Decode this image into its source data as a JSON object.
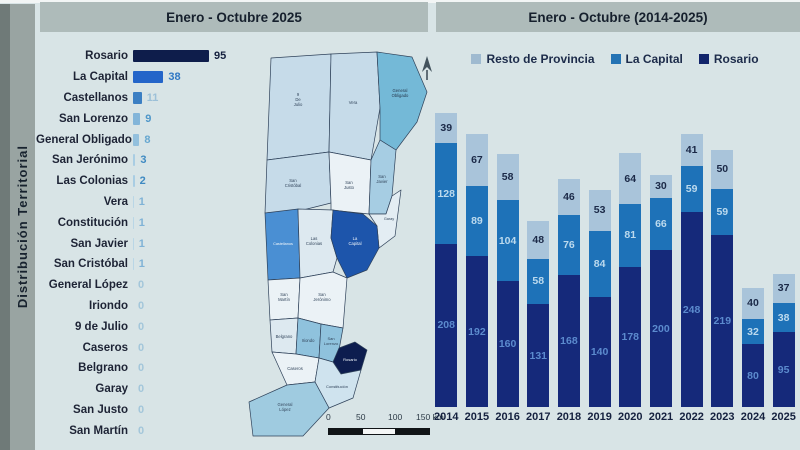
{
  "sidebar": {
    "title": "Distribución Territorial"
  },
  "left_panel": {
    "title": "Enero - Octubre 2025"
  },
  "right_panel": {
    "title": "Enero - Octubre (2014-2025)"
  },
  "legend": [
    {
      "label": "Resto de Provincia",
      "color": "#9fbad0"
    },
    {
      "label": "La Capital",
      "color": "#2473b4"
    },
    {
      "label": "Rosario",
      "color": "#12256b"
    }
  ],
  "chart_data": [
    {
      "type": "bar",
      "orientation": "horizontal",
      "title": "Enero - Octubre 2025",
      "categories": [
        "Rosario",
        "La Capital",
        "Castellanos",
        "San Lorenzo",
        "General Obligado",
        "San Jerónimo",
        "Las Colonias",
        "Vera",
        "Constitución",
        "San Javier",
        "San Cristóbal",
        "General López",
        "Iriondo",
        "9 de Julio",
        "Caseros",
        "Belgrano",
        "Garay",
        "San Justo",
        "San Martín"
      ],
      "values": [
        95,
        38,
        11,
        9,
        8,
        3,
        2,
        1,
        1,
        1,
        1,
        0,
        0,
        0,
        0,
        0,
        0,
        0,
        0
      ],
      "bar_colors": [
        "#0e1d4b",
        "#2465c9",
        "#3b7fc3",
        "#82b5d9",
        "#93c0dd",
        "#a9cde3",
        "#a9cde3",
        "#b9d6e6",
        "#b9d6e6",
        "#b9d6e6",
        "#b9d6e6",
        "#b9d6e6",
        "#b9d6e6",
        "#b9d6e6",
        "#b9d6e6",
        "#b9d6e6",
        "#b9d6e6",
        "#b9d6e6",
        "#b9d6e6"
      ],
      "value_colors": [
        "#15203f",
        "#2f77c4",
        "#9cc0d8",
        "#4f97c9",
        "#66a7d0",
        "#3f8ac2",
        "#3f8ac2",
        "#7fb2d6",
        "#7fb2d6",
        "#7fb2d6",
        "#7fb2d6",
        "#a3c6da",
        "#a3c6da",
        "#a3c6da",
        "#a3c6da",
        "#a3c6da",
        "#a3c6da",
        "#a3c6da",
        "#a3c6da"
      ],
      "xlim": [
        0,
        100
      ],
      "grid": false
    },
    {
      "type": "bar",
      "stacked": true,
      "title": "Enero - Octubre (2014-2025)",
      "categories": [
        "2014",
        "2015",
        "2016",
        "2017",
        "2018",
        "2019",
        "2020",
        "2021",
        "2022",
        "2023",
        "2024",
        "2025"
      ],
      "series": [
        {
          "name": "Rosario",
          "color": "#15297a",
          "label_color": "#5c8bce",
          "values": [
            208,
            192,
            160,
            131,
            168,
            140,
            178,
            200,
            248,
            219,
            80,
            95
          ]
        },
        {
          "name": "La Capital",
          "color": "#1e72b8",
          "label_color": "#bcdaee",
          "values": [
            128,
            89,
            104,
            58,
            76,
            84,
            81,
            66,
            59,
            59,
            32,
            38
          ]
        },
        {
          "name": "Resto de Provincia",
          "color": "#a9c4da",
          "label_color": "#1b2947",
          "values": [
            39,
            67,
            58,
            48,
            46,
            53,
            64,
            30,
            41,
            50,
            40,
            37
          ]
        }
      ],
      "legend_position": "top",
      "grid": false
    }
  ],
  "map": {
    "scale_labels": [
      "0",
      "50",
      "100",
      "150 km"
    ],
    "regions": [
      {
        "name": "9 de Julio",
        "label_lines": [
          "9",
          "De",
          "Julio"
        ],
        "fill": "#c6dbe9",
        "label_color": "#33465c"
      },
      {
        "name": "Vera",
        "label_lines": [
          "Vera"
        ],
        "fill": "#c6dbe9",
        "label_color": "#33465c"
      },
      {
        "name": "General Obligado",
        "label_lines": [
          "General",
          "Obligado"
        ],
        "fill": "#74b9d7",
        "label_color": "#26394e"
      },
      {
        "name": "San Cristóbal",
        "label_lines": [
          "San",
          "Cristóbal"
        ],
        "fill": "#c6dbe9",
        "label_color": "#33465c"
      },
      {
        "name": "San Justo",
        "label_lines": [
          "San",
          "Justo"
        ],
        "fill": "#ebf2f6",
        "label_color": "#33465c"
      },
      {
        "name": "San Javier",
        "label_lines": [
          "San",
          "Javier"
        ],
        "fill": "#a6cde3",
        "label_color": "#33465c"
      },
      {
        "name": "Garay",
        "label_lines": [
          "Garay"
        ],
        "fill": "#e3edf3",
        "label_color": "#33465c"
      },
      {
        "name": "Castellanos",
        "label_lines": [
          "Castellanos"
        ],
        "fill": "#4a8fd3",
        "label_color": "#f2f7fb"
      },
      {
        "name": "Las Colonias",
        "label_lines": [
          "Las",
          "Colonias"
        ],
        "fill": "#dde9f0",
        "label_color": "#33465c"
      },
      {
        "name": "La Capital",
        "label_lines": [
          "La",
          "Capital"
        ],
        "fill": "#1d55ab",
        "label_color": "#f2f7fb"
      },
      {
        "name": "San Martín",
        "label_lines": [
          "San",
          "Martín"
        ],
        "fill": "#ebf2f6",
        "label_color": "#33465c"
      },
      {
        "name": "San Jerónimo",
        "label_lines": [
          "San",
          "Jerónimo"
        ],
        "fill": "#ebf2f6",
        "label_color": "#33465c"
      },
      {
        "name": "Belgrano",
        "label_lines": [
          "Belgrano"
        ],
        "fill": "#dde9f0",
        "label_color": "#33465c"
      },
      {
        "name": "Iriondo",
        "label_lines": [
          "Iriondo"
        ],
        "fill": "#8fc2dd",
        "label_color": "#33465c"
      },
      {
        "name": "San Lorenzo",
        "label_lines": [
          "San",
          "Lorenzo"
        ],
        "fill": "#8fc2dd",
        "label_color": "#33465c"
      },
      {
        "name": "Rosario",
        "label_lines": [
          "Rosario"
        ],
        "fill": "#0d1d4f",
        "label_color": "#f2f7fb"
      },
      {
        "name": "Caseros",
        "label_lines": [
          "Caseros"
        ],
        "fill": "#ebf2f6",
        "label_color": "#33465c"
      },
      {
        "name": "Constitución",
        "label_lines": [
          "Constitución"
        ],
        "fill": "#cfe3ee",
        "label_color": "#33465c"
      },
      {
        "name": "General López",
        "label_lines": [
          "General",
          "López"
        ],
        "fill": "#9fcbe0",
        "label_color": "#33465c"
      }
    ]
  }
}
